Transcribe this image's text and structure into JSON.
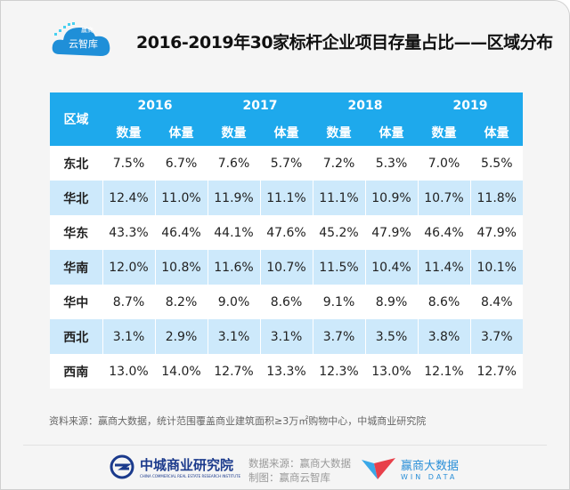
{
  "header": {
    "logo_text_top": "赢商",
    "logo_text": "云智库",
    "title": "2016-2019年30家标杆企业项目存量占比——区域分布"
  },
  "table": {
    "region_header": "区域",
    "years": [
      "2016",
      "2017",
      "2018",
      "2019"
    ],
    "sub_headers": [
      "数量",
      "体量"
    ],
    "rows": [
      {
        "region": "东北",
        "values": [
          "7.5%",
          "6.7%",
          "7.6%",
          "5.7%",
          "7.2%",
          "5.3%",
          "7.0%",
          "5.5%"
        ]
      },
      {
        "region": "华北",
        "values": [
          "12.4%",
          "11.0%",
          "11.9%",
          "11.1%",
          "11.1%",
          "10.9%",
          "10.7%",
          "11.8%"
        ]
      },
      {
        "region": "华东",
        "values": [
          "43.3%",
          "46.4%",
          "44.1%",
          "47.6%",
          "45.2%",
          "47.9%",
          "46.4%",
          "47.9%"
        ]
      },
      {
        "region": "华南",
        "values": [
          "12.0%",
          "10.8%",
          "11.6%",
          "10.7%",
          "11.5%",
          "10.4%",
          "11.4%",
          "10.1%"
        ]
      },
      {
        "region": "华中",
        "values": [
          "8.7%",
          "8.2%",
          "9.0%",
          "8.6%",
          "9.1%",
          "8.9%",
          "8.6%",
          "8.4%"
        ]
      },
      {
        "region": "西北",
        "values": [
          "3.1%",
          "2.9%",
          "3.1%",
          "3.1%",
          "3.7%",
          "3.5%",
          "3.8%",
          "3.7%"
        ]
      },
      {
        "region": "西南",
        "values": [
          "13.0%",
          "14.0%",
          "12.7%",
          "13.3%",
          "12.3%",
          "13.0%",
          "12.1%",
          "12.7%"
        ]
      }
    ]
  },
  "source_note": "资料来源：赢商大数据，统计范围覆盖商业建筑面积≥3万㎡购物中心，中城商业研究院",
  "footer": {
    "org_name": "中城商业研究院",
    "org_en": "CHINA COMMERCIAL REAL ESTATE RESEARCH INSTITUTE",
    "data_source": "数据来源：赢商大数据",
    "made_by": "制图：赢商云智库",
    "brand_cn": "赢商大数据",
    "brand_en": "WIN DATA"
  },
  "colors": {
    "header_bg": "#1ea9ec",
    "alt_row": "#cde9fb"
  }
}
